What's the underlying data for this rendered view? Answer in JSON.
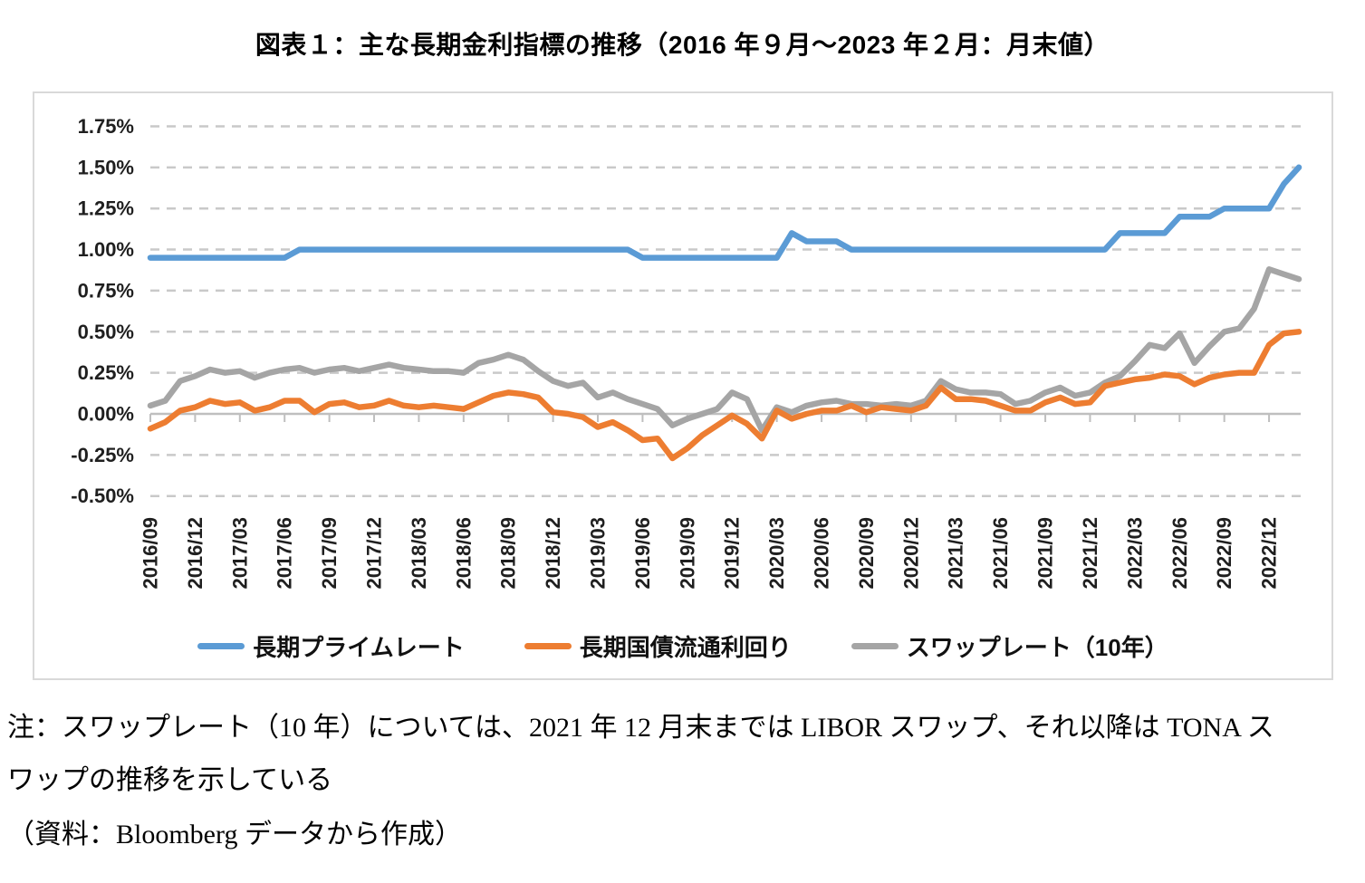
{
  "notes": {
    "line1": "注：スワップレート（10 年）については、2021 年 12 月末までは LIBOR スワップ、それ以降は TONA ス",
    "line2": "ワップの推移を示している",
    "source": "（資料：Bloomberg データから作成）"
  },
  "chart_data": {
    "type": "line",
    "title": "図表１：主な長期金利指標の推移（2016 年９月～2023 年２月：月末値）",
    "xlabel": "",
    "ylabel": "",
    "ylim": [
      -0.5,
      1.75
    ],
    "ytick_step": 0.25,
    "ytick_format": "0.00%",
    "xtick_interval_months": 3,
    "grid": "horizontal-dashed",
    "legend_position": "bottom",
    "x": [
      "2016/09",
      "2016/10",
      "2016/11",
      "2016/12",
      "2017/01",
      "2017/02",
      "2017/03",
      "2017/04",
      "2017/05",
      "2017/06",
      "2017/07",
      "2017/08",
      "2017/09",
      "2017/10",
      "2017/11",
      "2017/12",
      "2018/01",
      "2018/02",
      "2018/03",
      "2018/04",
      "2018/05",
      "2018/06",
      "2018/07",
      "2018/08",
      "2018/09",
      "2018/10",
      "2018/11",
      "2018/12",
      "2019/01",
      "2019/02",
      "2019/03",
      "2019/04",
      "2019/05",
      "2019/06",
      "2019/07",
      "2019/08",
      "2019/09",
      "2019/10",
      "2019/11",
      "2019/12",
      "2020/01",
      "2020/02",
      "2020/03",
      "2020/04",
      "2020/05",
      "2020/06",
      "2020/07",
      "2020/08",
      "2020/09",
      "2020/10",
      "2020/11",
      "2020/12",
      "2021/01",
      "2021/02",
      "2021/03",
      "2021/04",
      "2021/05",
      "2021/06",
      "2021/07",
      "2021/08",
      "2021/09",
      "2021/10",
      "2021/11",
      "2021/12",
      "2022/01",
      "2022/02",
      "2022/03",
      "2022/04",
      "2022/05",
      "2022/06",
      "2022/07",
      "2022/08",
      "2022/09",
      "2022/10",
      "2022/11",
      "2022/12",
      "2023/01",
      "2023/02"
    ],
    "series": [
      {
        "id": "prime-rate",
        "name": "長期プライムレート",
        "color": "#5B9BD5",
        "values": [
          0.95,
          0.95,
          0.95,
          0.95,
          0.95,
          0.95,
          0.95,
          0.95,
          0.95,
          0.95,
          1.0,
          1.0,
          1.0,
          1.0,
          1.0,
          1.0,
          1.0,
          1.0,
          1.0,
          1.0,
          1.0,
          1.0,
          1.0,
          1.0,
          1.0,
          1.0,
          1.0,
          1.0,
          1.0,
          1.0,
          1.0,
          1.0,
          1.0,
          0.95,
          0.95,
          0.95,
          0.95,
          0.95,
          0.95,
          0.95,
          0.95,
          0.95,
          0.95,
          1.1,
          1.05,
          1.05,
          1.05,
          1.0,
          1.0,
          1.0,
          1.0,
          1.0,
          1.0,
          1.0,
          1.0,
          1.0,
          1.0,
          1.0,
          1.0,
          1.0,
          1.0,
          1.0,
          1.0,
          1.0,
          1.0,
          1.1,
          1.1,
          1.1,
          1.1,
          1.2,
          1.2,
          1.2,
          1.25,
          1.25,
          1.25,
          1.25,
          1.4,
          1.5
        ]
      },
      {
        "id": "jgb-yield",
        "name": "長期国債流通利回り",
        "color": "#ED7D31",
        "values": [
          -0.09,
          -0.05,
          0.02,
          0.04,
          0.08,
          0.06,
          0.07,
          0.02,
          0.04,
          0.08,
          0.08,
          0.01,
          0.06,
          0.07,
          0.04,
          0.05,
          0.08,
          0.05,
          0.04,
          0.05,
          0.04,
          0.03,
          0.07,
          0.11,
          0.13,
          0.12,
          0.1,
          0.01,
          0.0,
          -0.02,
          -0.08,
          -0.05,
          -0.1,
          -0.16,
          -0.15,
          -0.27,
          -0.21,
          -0.13,
          -0.07,
          -0.01,
          -0.06,
          -0.15,
          0.02,
          -0.03,
          0.0,
          0.02,
          0.02,
          0.05,
          0.01,
          0.04,
          0.03,
          0.02,
          0.05,
          0.16,
          0.09,
          0.09,
          0.08,
          0.05,
          0.02,
          0.02,
          0.07,
          0.1,
          0.06,
          0.07,
          0.17,
          0.19,
          0.21,
          0.22,
          0.24,
          0.23,
          0.18,
          0.22,
          0.24,
          0.25,
          0.25,
          0.42,
          0.49,
          0.5
        ]
      },
      {
        "id": "swap-rate",
        "name": "スワップレート（10年）",
        "color": "#A5A5A5",
        "values": [
          0.05,
          0.08,
          0.2,
          0.23,
          0.27,
          0.25,
          0.26,
          0.22,
          0.25,
          0.27,
          0.28,
          0.25,
          0.27,
          0.28,
          0.26,
          0.28,
          0.3,
          0.28,
          0.27,
          0.26,
          0.26,
          0.25,
          0.31,
          0.33,
          0.36,
          0.33,
          0.26,
          0.2,
          0.17,
          0.19,
          0.1,
          0.13,
          0.09,
          0.06,
          0.03,
          -0.07,
          -0.03,
          0.0,
          0.03,
          0.13,
          0.09,
          -0.1,
          0.04,
          0.01,
          0.05,
          0.07,
          0.08,
          0.06,
          0.06,
          0.05,
          0.06,
          0.05,
          0.08,
          0.2,
          0.15,
          0.13,
          0.13,
          0.12,
          0.06,
          0.08,
          0.13,
          0.16,
          0.11,
          0.13,
          0.19,
          0.23,
          0.32,
          0.42,
          0.4,
          0.49,
          0.31,
          0.41,
          0.5,
          0.52,
          0.64,
          0.88,
          0.85,
          0.82
        ]
      }
    ]
  }
}
